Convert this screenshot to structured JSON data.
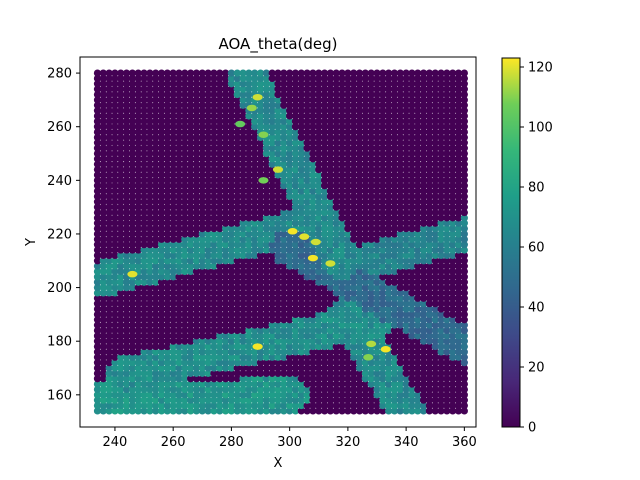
{
  "chart_data": {
    "type": "scatter",
    "title": "AOA_theta(deg)",
    "xlabel": "X",
    "ylabel": "Y",
    "xlim": [
      228,
      364
    ],
    "ylim": [
      148,
      286
    ],
    "xticks": [
      240,
      260,
      280,
      300,
      320,
      340,
      360
    ],
    "yticks": [
      160,
      180,
      200,
      220,
      240,
      260,
      280
    ],
    "grid": false,
    "colormap": "viridis",
    "colorbar": {
      "range": [
        0,
        123
      ],
      "ticks": [
        0,
        20,
        40,
        60,
        80,
        100,
        120
      ]
    },
    "grid_extent": {
      "x": [
        234,
        361
      ],
      "y": [
        154,
        280
      ]
    },
    "background_value": 0,
    "regions": [
      {
        "name": "road-ne-nw",
        "from": [
          285,
          280
        ],
        "to": [
          318,
          210
        ],
        "value": 65
      },
      {
        "name": "road-diag-main",
        "from": [
          300,
          215
        ],
        "to": [
          361,
          178
        ],
        "value": 48
      },
      {
        "name": "road-west-spur",
        "from": [
          234,
          203
        ],
        "to": [
          300,
          222
        ],
        "value": 66
      },
      {
        "name": "road-upper-right",
        "from": [
          320,
          208
        ],
        "to": [
          361,
          220
        ],
        "value": 62
      },
      {
        "name": "road-lower-mid",
        "from": [
          244,
          168
        ],
        "to": [
          330,
          188
        ],
        "value": 68
      },
      {
        "name": "road-bottom",
        "from": [
          234,
          158
        ],
        "to": [
          300,
          160
        ],
        "value": 72
      },
      {
        "name": "road-right-down",
        "from": [
          320,
          190
        ],
        "to": [
          340,
          154
        ],
        "value": 66
      }
    ],
    "hotspots": [
      {
        "x": 289,
        "y": 271,
        "value": 118
      },
      {
        "x": 287,
        "y": 267,
        "value": 112
      },
      {
        "x": 283,
        "y": 261,
        "value": 105
      },
      {
        "x": 291,
        "y": 257,
        "value": 110
      },
      {
        "x": 296,
        "y": 244,
        "value": 118
      },
      {
        "x": 291,
        "y": 240,
        "value": 108
      },
      {
        "x": 301,
        "y": 221,
        "value": 122
      },
      {
        "x": 305,
        "y": 219,
        "value": 120
      },
      {
        "x": 309,
        "y": 217,
        "value": 118
      },
      {
        "x": 308,
        "y": 211,
        "value": 122
      },
      {
        "x": 314,
        "y": 209,
        "value": 118
      },
      {
        "x": 246,
        "y": 205,
        "value": 120
      },
      {
        "x": 289,
        "y": 178,
        "value": 122
      },
      {
        "x": 328,
        "y": 179,
        "value": 115
      },
      {
        "x": 333,
        "y": 177,
        "value": 122
      },
      {
        "x": 327,
        "y": 174,
        "value": 110
      }
    ]
  }
}
